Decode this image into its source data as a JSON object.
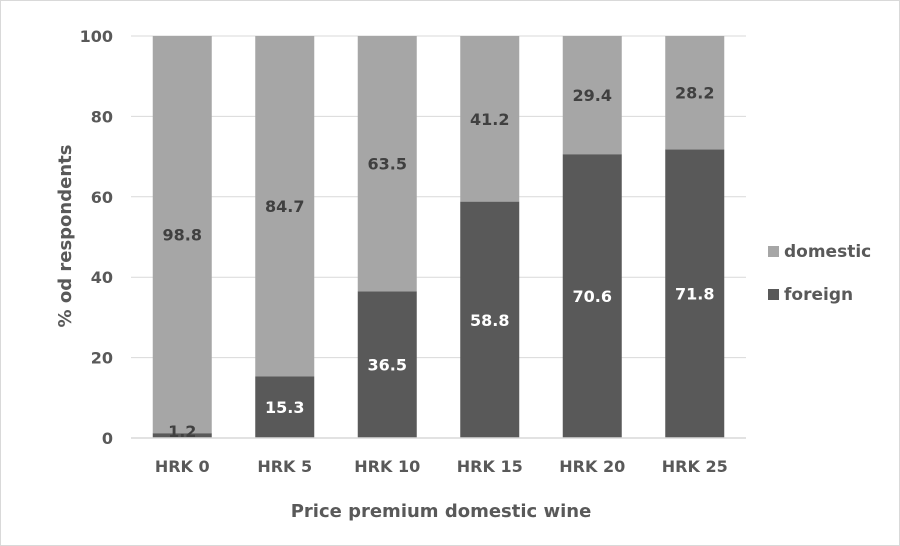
{
  "chart_data": {
    "type": "bar",
    "stacked": true,
    "categories": [
      "HRK 0",
      "HRK 5",
      "HRK 10",
      "HRK 15",
      "HRK 20",
      "HRK 25"
    ],
    "series": [
      {
        "name": "foreign",
        "values": [
          1.2,
          15.3,
          36.5,
          58.8,
          70.6,
          71.8
        ],
        "color": "#595959",
        "label_color": "#ffffff"
      },
      {
        "name": "domestic",
        "values": [
          98.8,
          84.7,
          63.5,
          41.2,
          29.4,
          28.2
        ],
        "color": "#a6a6a6",
        "label_color": "#404040"
      }
    ],
    "legend_order": [
      "domestic",
      "foreign"
    ],
    "legend_position": "right",
    "title": "",
    "xlabel": "Price premium domestic wine",
    "ylabel": "% od respondents",
    "ylim": [
      0,
      100
    ],
    "yticks": [
      0,
      20,
      40,
      60,
      80,
      100
    ],
    "grid": true,
    "gridline_color": "#d9d9d9"
  }
}
